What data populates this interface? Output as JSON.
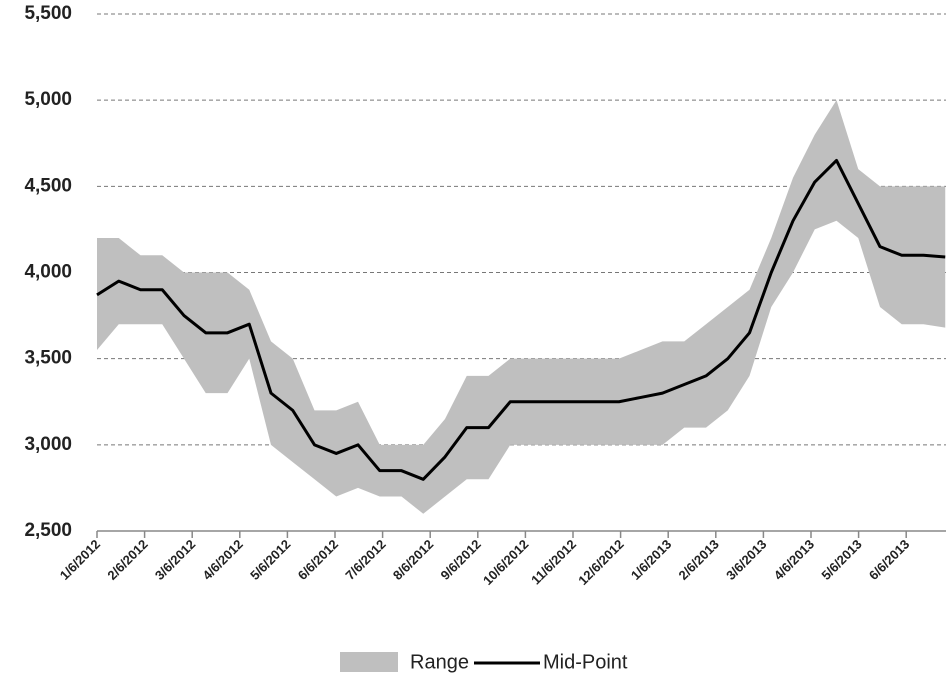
{
  "chart_data": {
    "type": "range-line",
    "xticks": [
      "1/6/2012",
      "2/6/2012",
      "3/6/2012",
      "4/6/2012",
      "5/6/2012",
      "6/6/2012",
      "7/6/2012",
      "8/6/2012",
      "9/6/2012",
      "10/6/2012",
      "11/6/2012",
      "12/6/2012",
      "1/6/2013",
      "2/6/2013",
      "3/6/2013",
      "4/6/2013",
      "5/6/2013",
      "6/6/2013"
    ],
    "ylim": [
      2500,
      5500
    ],
    "yticks": [
      {
        "value": 2500,
        "label": "2,500"
      },
      {
        "value": 3000,
        "label": "3,000"
      },
      {
        "value": 3500,
        "label": "3,500"
      },
      {
        "value": 4000,
        "label": "4,000"
      },
      {
        "value": 4500,
        "label": "4,500"
      },
      {
        "value": 5000,
        "label": "5,000"
      },
      {
        "value": 5500,
        "label": "5,500"
      }
    ],
    "grid": true,
    "series": [
      {
        "name": "Range",
        "color": "#bfbfbf",
        "high": [
          4200,
          4200,
          4100,
          4100,
          4000,
          4000,
          4000,
          3900,
          3600,
          3500,
          3200,
          3200,
          3250,
          3000,
          3000,
          3000,
          3150,
          3400,
          3400,
          3500,
          3500,
          3500,
          3500,
          3500,
          3500,
          3550,
          3600,
          3600,
          3700,
          3800,
          3900,
          4200,
          4550,
          4800,
          5000,
          4600,
          4500,
          4500,
          4500,
          4500
        ],
        "low": [
          3550,
          3700,
          3700,
          3700,
          3500,
          3300,
          3300,
          3500,
          3000,
          2900,
          2800,
          2700,
          2750,
          2700,
          2700,
          2600,
          2700,
          2800,
          2800,
          3000,
          3000,
          3000,
          3000,
          3000,
          3000,
          3000,
          3000,
          3100,
          3100,
          3200,
          3400,
          3800,
          4000,
          4250,
          4300,
          4200,
          3800,
          3700,
          3700,
          3680
        ]
      },
      {
        "name": "Mid-Point",
        "color": "#000000",
        "values": [
          3870,
          3950,
          3900,
          3900,
          3750,
          3650,
          3650,
          3700,
          3300,
          3200,
          3000,
          2950,
          3000,
          2850,
          2850,
          2800,
          2930,
          3100,
          3100,
          3250,
          3250,
          3250,
          3250,
          3250,
          3250,
          3275,
          3300,
          3350,
          3400,
          3500,
          3650,
          4000,
          4300,
          4525,
          4650,
          4400,
          4150,
          4100,
          4100,
          4090
        ]
      }
    ]
  }
}
